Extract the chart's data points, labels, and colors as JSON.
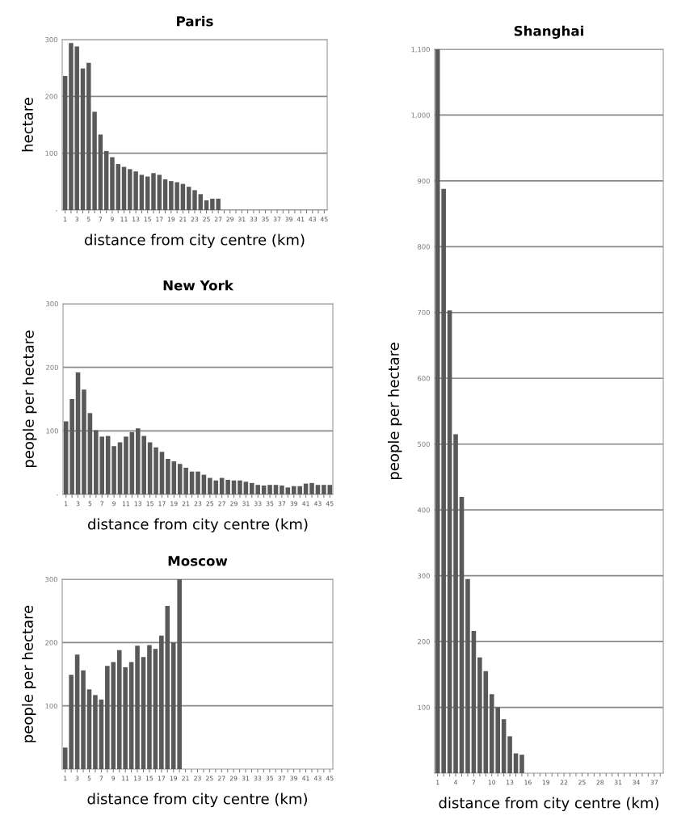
{
  "chart_data": [
    {
      "type": "bar",
      "title": "Paris",
      "xlabel": "distance from city centre (km)",
      "ylabel": "hectare",
      "categories": [
        "1",
        null,
        "3",
        null,
        "5",
        null,
        "7",
        null,
        "9",
        null,
        "11",
        null,
        "13",
        null,
        "15",
        null,
        "17",
        null,
        "19",
        null,
        "21",
        null,
        "23",
        null,
        "25",
        null,
        "27",
        null,
        "29",
        null,
        "31",
        null,
        "33",
        null,
        "35",
        null,
        "37",
        null,
        "39",
        null,
        "41",
        null,
        "43",
        null,
        "45"
      ],
      "values": [
        236,
        294,
        288,
        249,
        259,
        173,
        133,
        104,
        93,
        81,
        76,
        72,
        68,
        62,
        59,
        65,
        62,
        54,
        51,
        49,
        46,
        41,
        35,
        28,
        17,
        20,
        20,
        null,
        null,
        null,
        null,
        null,
        null,
        null,
        null,
        null,
        null,
        null,
        null,
        null,
        null,
        null,
        null,
        null,
        null
      ],
      "color": "#595959",
      "ylim": [
        0,
        300
      ],
      "yticks": [
        {
          "value": 0,
          "label": "-"
        },
        100,
        200,
        300
      ],
      "grid": "y"
    },
    {
      "type": "bar",
      "title": "New York",
      "xlabel": "distance from city centre (km)",
      "ylabel": "people per hectare",
      "categories": [
        "1",
        null,
        "3",
        null,
        "5",
        null,
        "7",
        null,
        "9",
        null,
        "11",
        null,
        "13",
        null,
        "15",
        null,
        "17",
        null,
        "19",
        null,
        "21",
        null,
        "23",
        null,
        "25",
        null,
        "27",
        null,
        "29",
        null,
        "31",
        null,
        "33",
        null,
        "35",
        null,
        "37",
        null,
        "39",
        null,
        "41",
        null,
        "43",
        null,
        "45"
      ],
      "values": [
        115,
        150,
        192,
        165,
        128,
        101,
        91,
        92,
        76,
        82,
        91,
        98,
        104,
        92,
        82,
        74,
        67,
        56,
        52,
        48,
        42,
        36,
        36,
        31,
        26,
        22,
        26,
        23,
        22,
        22,
        20,
        18,
        15,
        14,
        15,
        15,
        14,
        11,
        13,
        13,
        17,
        18,
        15,
        15,
        15
      ],
      "color": "#595959",
      "ylim": [
        0,
        300
      ],
      "yticks": [
        {
          "value": 0,
          "label": "-"
        },
        100,
        200,
        300
      ],
      "grid": "y"
    },
    {
      "type": "bar",
      "title": "Moscow",
      "xlabel": "distance from city centre (km)",
      "ylabel": "people per hectare",
      "categories": [
        "1",
        null,
        "3",
        null,
        "5",
        null,
        "7",
        null,
        "9",
        null,
        "11",
        null,
        "13",
        null,
        "15",
        null,
        "17",
        null,
        "19",
        null,
        "21",
        null,
        "23",
        null,
        "25",
        null,
        "27",
        null,
        "29",
        null,
        "31",
        null,
        "33",
        null,
        "35",
        null,
        "37",
        null,
        "39",
        null,
        "41",
        null,
        "43",
        null,
        "45"
      ],
      "values": [
        34,
        149,
        181,
        156,
        126,
        117,
        110,
        163,
        169,
        188,
        161,
        169,
        195,
        177,
        196,
        190,
        211,
        258,
        200,
        300,
        null,
        null,
        null,
        null,
        null,
        null,
        null,
        null,
        null,
        null,
        null,
        null,
        null,
        null,
        null,
        null,
        null,
        null,
        null,
        null,
        null,
        null,
        null,
        null,
        null
      ],
      "color": "#595959",
      "ylim": [
        0,
        300
      ],
      "yticks": [
        100,
        200,
        300
      ],
      "grid": "y"
    },
    {
      "type": "bar",
      "title": "Shanghai",
      "xlabel": "distance from city centre (km)",
      "ylabel": "people per hectare",
      "categories": [
        "1",
        null,
        null,
        "4",
        null,
        null,
        "7",
        null,
        null,
        "10",
        null,
        null,
        "13",
        null,
        null,
        "16",
        null,
        null,
        "19",
        null,
        null,
        "22",
        null,
        null,
        "25",
        null,
        null,
        "28",
        null,
        null,
        "31",
        null,
        null,
        "34",
        null,
        null,
        "37",
        null
      ],
      "values": [
        1100,
        888,
        703,
        515,
        420,
        295,
        216,
        176,
        155,
        120,
        100,
        82,
        56,
        30,
        28,
        null,
        null,
        null,
        null,
        null,
        null,
        null,
        null,
        null,
        null,
        null,
        null,
        null,
        null,
        null,
        null,
        null,
        null,
        null,
        null,
        null,
        null,
        null
      ],
      "color": "#595959",
      "ylim": [
        0,
        1100
      ],
      "yticks": [
        100,
        200,
        300,
        400,
        500,
        600,
        700,
        800,
        900,
        {
          "value": 1000,
          "label": "1,000"
        },
        {
          "value": 1100,
          "label": "1,100"
        }
      ],
      "grid": "y"
    }
  ]
}
